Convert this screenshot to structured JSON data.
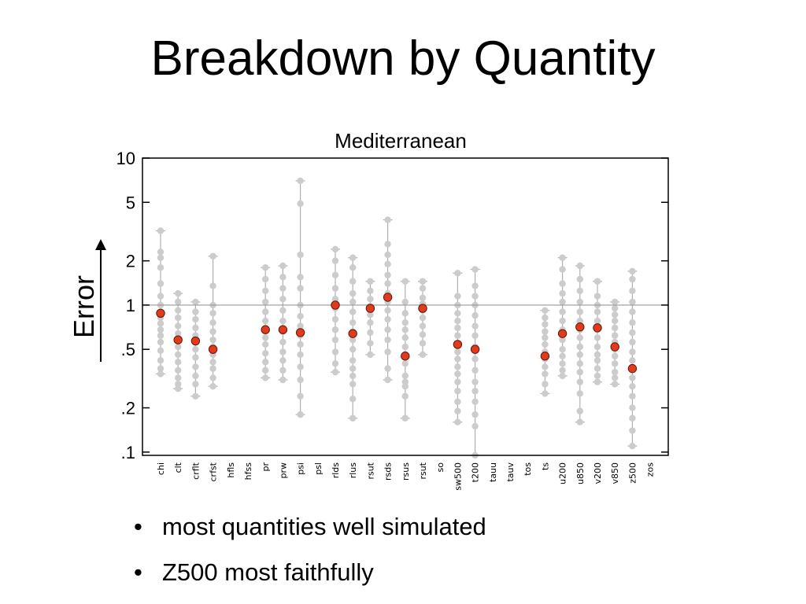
{
  "slide": {
    "title": "Breakdown by Quantity",
    "bullets": [
      "most quantities well simulated",
      "Z500 most faithfully"
    ]
  },
  "colors": {
    "model_points": "#cccccc",
    "highlight": "#e23a1a",
    "reference_line": "#999999",
    "axis": "#000000"
  },
  "chart_data": {
    "type": "scatter",
    "title": "Mediterranean",
    "ylabel": "Error",
    "yscale": "log",
    "ylim": [
      0.095,
      10
    ],
    "ytick_values": [
      10,
      5,
      2,
      1,
      0.5,
      0.2,
      0.1
    ],
    "ytick_labels": [
      "10",
      "5",
      "2",
      "1",
      ".5",
      ".2",
      ".1"
    ],
    "reference_line": 1,
    "grid": false,
    "categories": [
      "chi",
      "clt",
      "crflt",
      "crfst",
      "hfls",
      "hfss",
      "pr",
      "prw",
      "psi",
      "psl",
      "rlds",
      "rlus",
      "rsut",
      "rsds",
      "rsus",
      "rsut",
      "so",
      "sw500",
      "t200",
      "tauu",
      "tauv",
      "tos",
      "ts",
      "u200",
      "u850",
      "v200",
      "v850",
      "z500",
      "zos"
    ],
    "series": [
      {
        "role": "ensemble",
        "values": [
          [
            0.34,
            0.37,
            0.42,
            0.49,
            0.56,
            0.62,
            0.68,
            0.75,
            0.82,
            0.9,
            1.0,
            1.15,
            1.4,
            1.8,
            2.1,
            2.3,
            3.2
          ],
          [
            0.27,
            0.29,
            0.32,
            0.36,
            0.41,
            0.46,
            0.52,
            0.58,
            0.64,
            0.72,
            0.82,
            0.92,
            1.05,
            1.2
          ],
          [
            0.24,
            0.29,
            0.33,
            0.38,
            0.44,
            0.5,
            0.56,
            0.62,
            0.7,
            0.8,
            0.9,
            1.05
          ],
          [
            0.28,
            0.32,
            0.37,
            0.41,
            0.46,
            0.52,
            0.58,
            0.66,
            0.76,
            0.88,
            1.0,
            1.35,
            2.15
          ],
          null,
          null,
          [
            0.32,
            0.36,
            0.41,
            0.47,
            0.54,
            0.6,
            0.68,
            0.78,
            0.9,
            1.05,
            1.25,
            1.5,
            1.8
          ],
          [
            0.31,
            0.36,
            0.42,
            0.48,
            0.56,
            0.66,
            0.78,
            0.92,
            1.1,
            1.3,
            1.55,
            1.85
          ],
          [
            0.18,
            0.24,
            0.31,
            0.38,
            0.46,
            0.54,
            0.62,
            0.72,
            0.84,
            1.0,
            1.3,
            1.55,
            2.2,
            4.9,
            7.0
          ],
          null,
          [
            0.35,
            0.4,
            0.48,
            0.58,
            0.68,
            0.8,
            0.95,
            1.1,
            1.3,
            1.6,
            2.0,
            2.4
          ],
          [
            0.17,
            0.23,
            0.29,
            0.33,
            0.37,
            0.42,
            0.5,
            0.58,
            0.66,
            0.76,
            0.9,
            1.05,
            1.2,
            1.45,
            1.8,
            2.1
          ],
          [
            0.46,
            0.55,
            0.65,
            0.76,
            0.86,
            0.98,
            1.1,
            1.25,
            1.45
          ],
          [
            0.31,
            0.37,
            0.48,
            0.58,
            0.68,
            0.8,
            0.92,
            1.05,
            1.2,
            1.4,
            1.6,
            1.9,
            2.2,
            2.6,
            3.8
          ],
          [
            0.17,
            0.24,
            0.28,
            0.3,
            0.33,
            0.4,
            0.46,
            0.52,
            0.6,
            0.68,
            0.76,
            0.88,
            1.05,
            1.45
          ],
          [
            0.46,
            0.55,
            0.63,
            0.72,
            0.82,
            0.92,
            1.02,
            1.12,
            1.3,
            1.45
          ],
          null,
          [
            0.16,
            0.19,
            0.22,
            0.26,
            0.3,
            0.34,
            0.38,
            0.43,
            0.48,
            0.55,
            0.62,
            0.7,
            0.78,
            0.88,
            1.0,
            1.15,
            1.65
          ],
          [
            0.095,
            0.15,
            0.18,
            0.22,
            0.26,
            0.3,
            0.36,
            0.43,
            0.52,
            0.62,
            0.72,
            0.85,
            1.0,
            1.15,
            1.35,
            1.75
          ],
          null,
          null,
          null,
          [
            0.25,
            0.29,
            0.34,
            0.38,
            0.43,
            0.48,
            0.54,
            0.6,
            0.66,
            0.74,
            0.82,
            0.92
          ],
          [
            0.33,
            0.36,
            0.4,
            0.45,
            0.5,
            0.58,
            0.68,
            0.78,
            0.9,
            1.05,
            1.2,
            1.4,
            1.75,
            2.1
          ],
          [
            0.16,
            0.19,
            0.25,
            0.3,
            0.35,
            0.4,
            0.46,
            0.52,
            0.6,
            0.68,
            0.78,
            0.9,
            1.05,
            1.25,
            1.5,
            1.85
          ],
          [
            0.3,
            0.33,
            0.37,
            0.42,
            0.46,
            0.52,
            0.6,
            0.68,
            0.78,
            0.9,
            1.0,
            1.15,
            1.45
          ],
          [
            0.29,
            0.32,
            0.35,
            0.4,
            0.45,
            0.5,
            0.56,
            0.62,
            0.7,
            0.78,
            0.86,
            0.95,
            1.05
          ],
          [
            0.11,
            0.14,
            0.17,
            0.2,
            0.24,
            0.28,
            0.32,
            0.37,
            0.42,
            0.48,
            0.56,
            0.65,
            0.76,
            0.9,
            1.05,
            1.25,
            1.5,
            1.7
          ],
          null
        ]
      },
      {
        "role": "highlight",
        "values": [
          0.88,
          0.58,
          0.57,
          0.5,
          null,
          null,
          0.68,
          0.68,
          0.65,
          null,
          1.0,
          0.64,
          0.95,
          1.13,
          0.45,
          0.95,
          null,
          0.54,
          0.5,
          null,
          null,
          null,
          0.45,
          0.64,
          0.71,
          0.7,
          0.52,
          0.37,
          null
        ]
      }
    ]
  }
}
